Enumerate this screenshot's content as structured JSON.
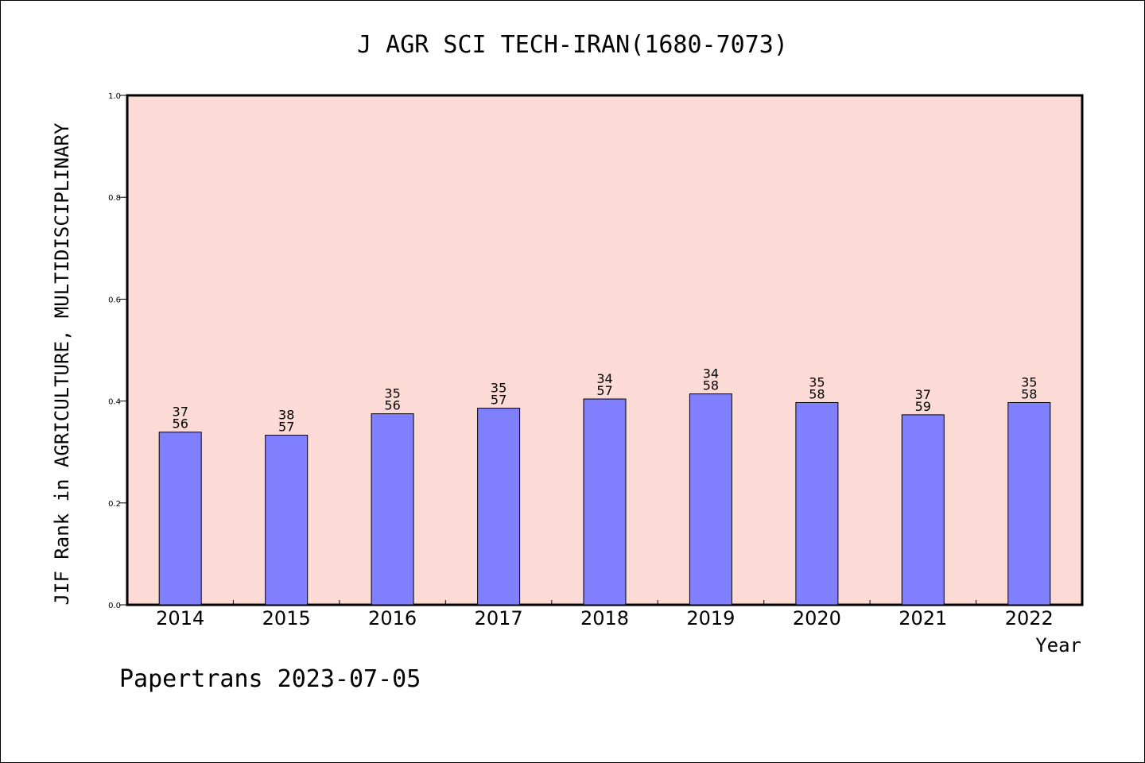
{
  "colors": {
    "plot_background": "#fcdad6",
    "bar_fill": "#8080ff",
    "bar_stroke": "#000000",
    "axis": "#000000"
  },
  "footer": "Papertrans 2023-07-05",
  "chart_data": {
    "type": "bar",
    "title": "J AGR SCI TECH-IRAN(1680-7073)",
    "xlabel": "Year",
    "ylabel": "JIF Rank in AGRICULTURE, MULTIDISCIPLINARY",
    "ylim": [
      0,
      1.0
    ],
    "yticks": [
      "0.0",
      "0.2",
      "0.4",
      "0.6",
      "0.8",
      "1.0"
    ],
    "grid": false,
    "categories": [
      "2014",
      "2015",
      "2016",
      "2017",
      "2018",
      "2019",
      "2020",
      "2021",
      "2022"
    ],
    "values": [
      0.339,
      0.333,
      0.375,
      0.386,
      0.404,
      0.414,
      0.397,
      0.373,
      0.397
    ],
    "labels": [
      [
        "37",
        "56"
      ],
      [
        "38",
        "57"
      ],
      [
        "35",
        "56"
      ],
      [
        "35",
        "57"
      ],
      [
        "34",
        "57"
      ],
      [
        "34",
        "58"
      ],
      [
        "35",
        "58"
      ],
      [
        "37",
        "59"
      ],
      [
        "35",
        "58"
      ]
    ]
  }
}
